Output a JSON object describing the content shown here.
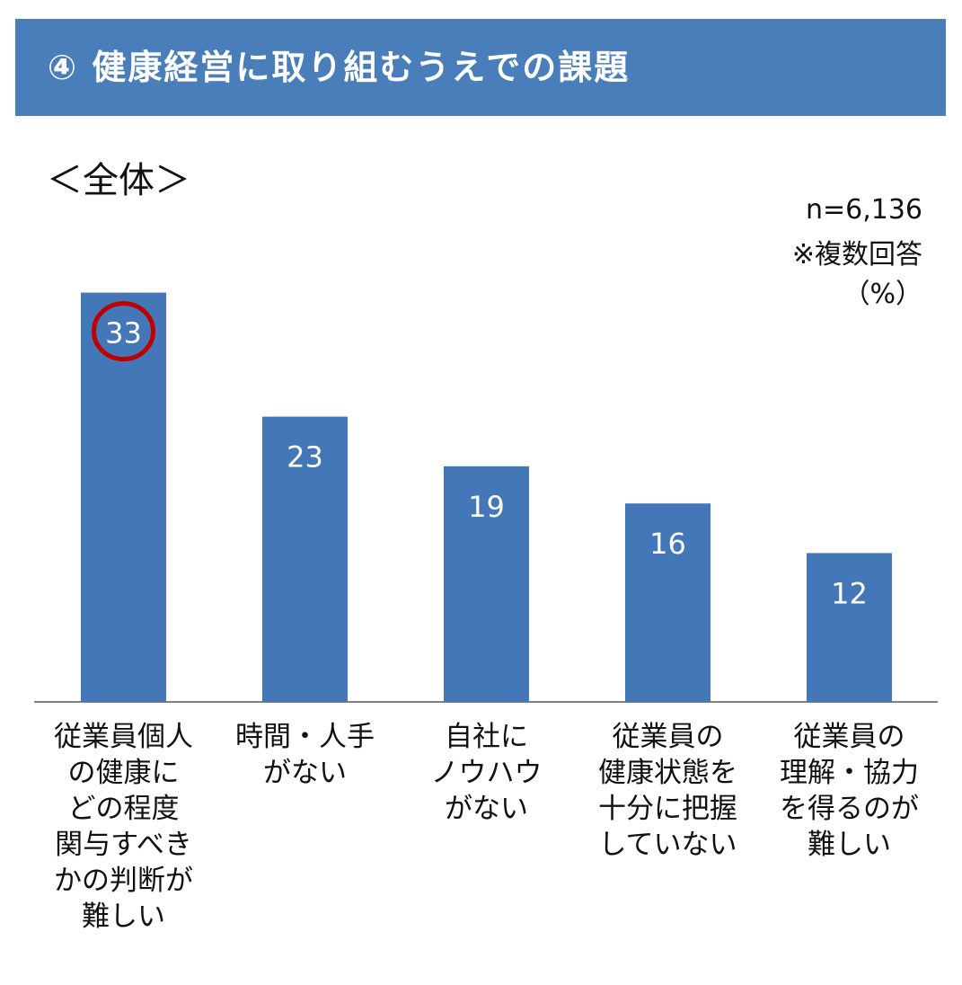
{
  "header": {
    "title": "④ 健康経営に取り組むうえでの課題",
    "subtitle": "＜全体＞",
    "sample_size": "n=6,136",
    "note": "※複数回答",
    "unit": "（%）"
  },
  "colors": {
    "banner": "#4a7ebb",
    "bar": "#4377b8",
    "highlight_ring": "#c00000",
    "axis": "#808080"
  },
  "chart_data": {
    "type": "bar",
    "title": "④ 健康経営に取り組むうえでの課題",
    "subtitle": "＜全体＞",
    "categories": [
      "従業員個人\nの健康に\nどの程度\n関与すべき\nかの判断が\n難しい",
      "時間・人手\nがない",
      "自社に\nノウハウ\nがない",
      "従業員の\n健康状態を\n十分に把握\nしていない",
      "従業員の\n理解・協力\nを得るのが\n難しい"
    ],
    "values": [
      33,
      23,
      19,
      16,
      12
    ],
    "data_labels": [
      "33",
      "23",
      "19",
      "16",
      "12"
    ],
    "highlighted_index": 0,
    "unit": "（%）",
    "grid": false,
    "legend": "none"
  }
}
